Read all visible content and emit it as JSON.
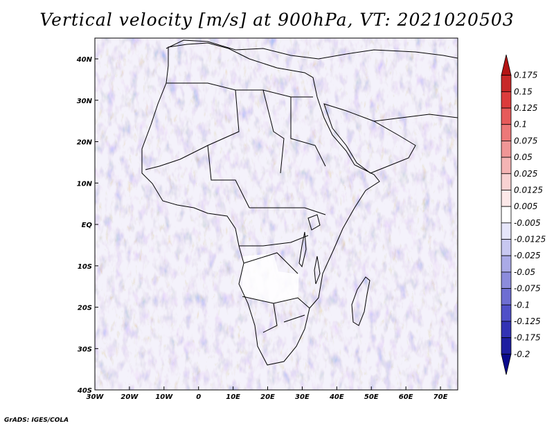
{
  "title": "Vertical velocity [m/s] at 900hPa, VT: 2021020503",
  "credit": "GrADS: IGES/COLA",
  "map": {
    "lon_ticks": [
      "30W",
      "20W",
      "10W",
      "0",
      "10E",
      "20E",
      "30E",
      "40E",
      "50E",
      "60E",
      "70E"
    ],
    "lat_ticks": [
      "40N",
      "30N",
      "20N",
      "10N",
      "EQ",
      "10S",
      "20S",
      "30S",
      "40S"
    ],
    "lon_range": [
      -30,
      75
    ],
    "lat_range": [
      -40,
      45
    ]
  },
  "colorbar": {
    "levels": [
      "0.175",
      "0.15",
      "0.125",
      "0.1",
      "0.075",
      "0.05",
      "0.025",
      "0.0125",
      "0.005",
      "-0.005",
      "-0.0125",
      "-0.025",
      "-0.05",
      "-0.075",
      "-0.1",
      "-0.125",
      "-0.175",
      "-0.2"
    ],
    "colors": [
      "#b41414",
      "#c82828",
      "#dc3c3c",
      "#e65a5a",
      "#ec7878",
      "#f09696",
      "#f4b4b4",
      "#f8d2d2",
      "#fce8e8",
      "#ffffff",
      "#e6e6fa",
      "#c8c8f0",
      "#aaaae6",
      "#8c8cdc",
      "#6e6ed2",
      "#5050c8",
      "#3232b4",
      "#1e1ea0",
      "#0a0a8c"
    ]
  }
}
